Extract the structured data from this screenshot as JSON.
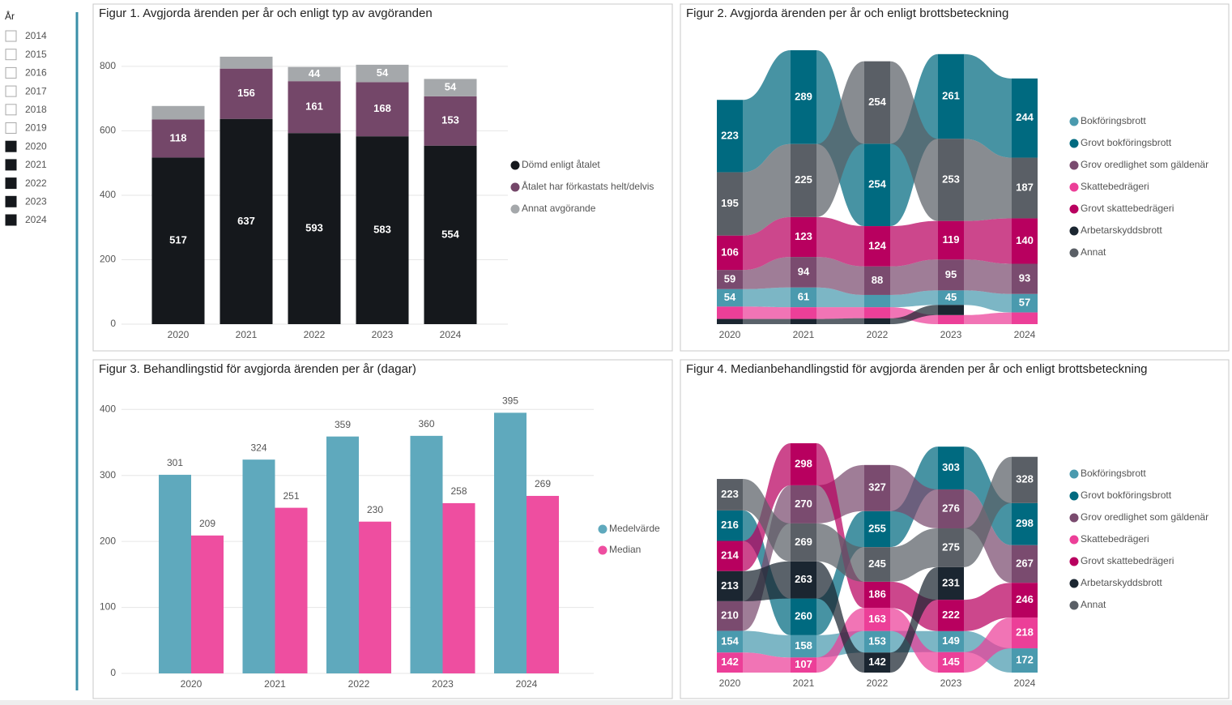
{
  "slicer": {
    "title": "År",
    "items": [
      "2014",
      "2015",
      "2016",
      "2017",
      "2018",
      "2019",
      "2020",
      "2021",
      "2022",
      "2023",
      "2024"
    ],
    "selected": [
      false,
      false,
      false,
      false,
      false,
      false,
      true,
      true,
      true,
      true,
      true
    ]
  },
  "chart_data": [
    {
      "type": "stacked_bar",
      "title": "Figur 1. Avgjorda ärenden per år och enligt typ av avgöranden",
      "categories": [
        "2020",
        "2021",
        "2022",
        "2023",
        "2024"
      ],
      "series": [
        {
          "name": "Dömd enligt åtalet",
          "color": "#15181c",
          "values": [
            517,
            637,
            593,
            583,
            554
          ]
        },
        {
          "name": "Åtalet har förkastats helt/delvis",
          "color": "#744769",
          "values": [
            118,
            156,
            161,
            168,
            153
          ]
        },
        {
          "name": "Annat avgörande",
          "color": "#a5a8ab",
          "values": [
            42,
            37,
            44,
            54,
            54
          ]
        }
      ],
      "ylim": [
        0,
        850
      ],
      "yticks": [
        0,
        200,
        400,
        600,
        800
      ],
      "grid": true,
      "legend": "right"
    },
    {
      "type": "ribbon",
      "title": "Figur 2. Avgjorda ärenden per år och enligt brottsbeteckning",
      "categories": [
        "2020",
        "2021",
        "2022",
        "2023",
        "2024"
      ],
      "series": [
        {
          "name": "Bokföringsbrott",
          "color": "#4a9aae",
          "values": [
            54,
            61,
            38,
            45,
            57
          ]
        },
        {
          "name": "Grovt bokföringsbrott",
          "color": "#006a80",
          "values": [
            223,
            289,
            254,
            261,
            244
          ]
        },
        {
          "name": "Grov oredlighet som gäldenär",
          "color": "#7a4b6f",
          "values": [
            59,
            94,
            88,
            95,
            93
          ]
        },
        {
          "name": "Skattebedrägeri",
          "color": "#ec3f98",
          "values": [
            38,
            36,
            34,
            28,
            36
          ]
        },
        {
          "name": "Grovt skattebedrägeri",
          "color": "#b8005f",
          "values": [
            106,
            123,
            124,
            119,
            140
          ]
        },
        {
          "name": "Arbetarskyddsbrott",
          "color": "#1b2631",
          "values": [
            16,
            16,
            18,
            31,
            null
          ]
        },
        {
          "name": "Annat",
          "color": "#5a5f66",
          "values": [
            195,
            225,
            254,
            253,
            187
          ]
        }
      ],
      "legend": "right"
    },
    {
      "type": "grouped_bar",
      "title": "Figur 3. Behandlingstid för avgjorda ärenden per år (dagar)",
      "categories": [
        "2020",
        "2021",
        "2022",
        "2023",
        "2024"
      ],
      "series": [
        {
          "name": "Medelvärde",
          "color": "#5fa9bd",
          "values": [
            301,
            324,
            359,
            360,
            395
          ]
        },
        {
          "name": "Median",
          "color": "#ee4ea0",
          "values": [
            209,
            251,
            230,
            258,
            269
          ]
        }
      ],
      "ylim": [
        0,
        420
      ],
      "yticks": [
        0,
        100,
        200,
        300,
        400
      ],
      "grid": true,
      "legend": "right"
    },
    {
      "type": "ribbon",
      "title": "Figur 4. Medianbehandlingstid för avgjorda ärenden per år och enligt brottsbeteckning",
      "categories": [
        "2020",
        "2021",
        "2022",
        "2023",
        "2024"
      ],
      "series": [
        {
          "name": "Bokföringsbrott",
          "color": "#4a9aae",
          "values": [
            154,
            158,
            153,
            149,
            172
          ]
        },
        {
          "name": "Grovt bokföringsbrott",
          "color": "#006a80",
          "values": [
            216,
            260,
            255,
            303,
            298
          ]
        },
        {
          "name": "Grov oredlighet som gäldenär",
          "color": "#7a4b6f",
          "values": [
            210,
            270,
            327,
            276,
            267
          ]
        },
        {
          "name": "Skattebedrägeri",
          "color": "#ec3f98",
          "values": [
            142,
            107,
            163,
            145,
            218
          ]
        },
        {
          "name": "Grovt skattebedrägeri",
          "color": "#b8005f",
          "values": [
            214,
            298,
            186,
            222,
            246
          ]
        },
        {
          "name": "Arbetarskyddsbrott",
          "color": "#1b2631",
          "values": [
            213,
            263,
            142,
            231,
            null
          ]
        },
        {
          "name": "Annat",
          "color": "#5a5f66",
          "values": [
            223,
            269,
            245,
            275,
            328
          ]
        }
      ],
      "legend": "right"
    }
  ]
}
